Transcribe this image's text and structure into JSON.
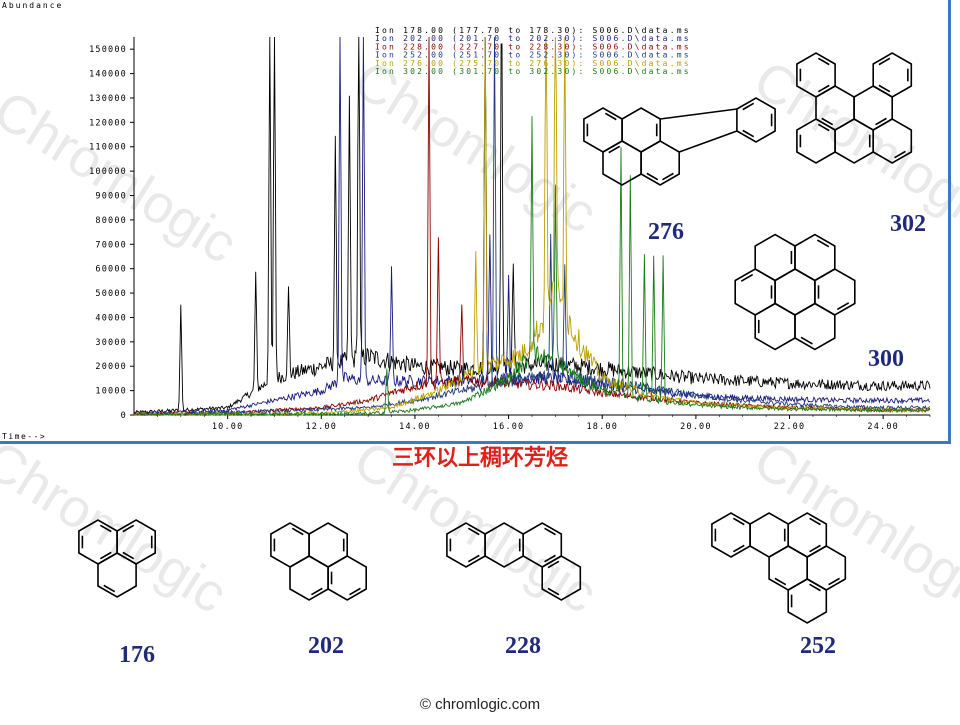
{
  "chart_data": {
    "type": "line",
    "ylabel": "Abundance",
    "xlabel": "Time-->",
    "xlim": [
      8.0,
      25.0
    ],
    "ylim": [
      0,
      155000
    ],
    "x_ticks": [
      "10.00",
      "12.00",
      "14.00",
      "16.00",
      "18.00",
      "20.00",
      "22.00",
      "24.00"
    ],
    "y_ticks": [
      "150000",
      "140000",
      "130000",
      "120000",
      "110000",
      "100000",
      "90000",
      "80000",
      "70000",
      "60000",
      "50000",
      "40000",
      "30000",
      "20000",
      "10000",
      "0"
    ],
    "legend": [
      "Ion 178.00 (177.70 to 178.30): S006.D\\data.ms",
      "Ion 202.00 (201.70 to 202.30): S006.D\\data.ms",
      "Ion 228.00 (227.70 to 228.30): S006.D\\data.ms",
      "Ion 252.00 (251.70 to 252.30): S006.D\\data.ms",
      "Ion 276.00 (275.70 to 276.30): S006.D\\data.ms",
      "Ion 302.00 (301.70 to 302.30): S006.D\\data.ms"
    ],
    "legend_placement": "top-center",
    "colors": [
      "#000000",
      "#1a1a80",
      "#8b0000",
      "#1f3a7a",
      "#b8a000",
      "#1a7a1a"
    ],
    "series": [
      {
        "name": "Ion 178.00",
        "color": "#000000",
        "baseline": [
          [
            8.0,
            1000
          ],
          [
            9.0,
            2000
          ],
          [
            10.0,
            3000
          ],
          [
            11.0,
            15000
          ],
          [
            12.0,
            20000
          ],
          [
            13.0,
            24000
          ],
          [
            14.0,
            20000
          ],
          [
            15.0,
            19000
          ],
          [
            16.0,
            20000
          ],
          [
            17.0,
            21000
          ],
          [
            18.0,
            19000
          ],
          [
            19.0,
            17000
          ],
          [
            20.0,
            15000
          ],
          [
            21.0,
            14000
          ],
          [
            22.0,
            13000
          ],
          [
            23.0,
            12500
          ],
          [
            24.0,
            12000
          ],
          [
            25.0,
            12000
          ]
        ],
        "peaks": [
          [
            9.0,
            43000
          ],
          [
            10.6,
            48000
          ],
          [
            10.9,
            155000
          ],
          [
            11.0,
            155000
          ],
          [
            11.3,
            35000
          ],
          [
            12.3,
            90000
          ],
          [
            12.6,
            110000
          ],
          [
            12.8,
            155000
          ],
          [
            15.5,
            155000
          ],
          [
            15.85,
            155000
          ],
          [
            16.1,
            40000
          ]
        ]
      },
      {
        "name": "Ion 202.00",
        "color": "#1a1a80",
        "baseline": [
          [
            8.0,
            500
          ],
          [
            9.0,
            1000
          ],
          [
            10.0,
            2000
          ],
          [
            11.0,
            6000
          ],
          [
            12.0,
            10000
          ],
          [
            12.5,
            15000
          ],
          [
            13.0,
            14000
          ],
          [
            14.0,
            14000
          ],
          [
            15.0,
            14000
          ],
          [
            16.0,
            15000
          ],
          [
            17.0,
            15000
          ],
          [
            18.0,
            12000
          ],
          [
            19.0,
            10000
          ],
          [
            20.0,
            8000
          ],
          [
            21.0,
            7000
          ],
          [
            22.0,
            6500
          ],
          [
            23.0,
            6000
          ],
          [
            24.0,
            6000
          ],
          [
            25.0,
            6000
          ]
        ],
        "peaks": [
          [
            12.4,
            155000
          ],
          [
            12.9,
            155000
          ],
          [
            13.5,
            45000
          ],
          [
            15.6,
            60000
          ],
          [
            16.0,
            45000
          ]
        ]
      },
      {
        "name": "Ion 228.00",
        "color": "#8b0000",
        "baseline": [
          [
            8.0,
            300
          ],
          [
            10.0,
            800
          ],
          [
            12.0,
            3000
          ],
          [
            13.0,
            6000
          ],
          [
            14.0,
            12000
          ],
          [
            15.0,
            14000
          ],
          [
            16.0,
            13000
          ],
          [
            17.0,
            12000
          ],
          [
            18.0,
            9000
          ],
          [
            19.0,
            7000
          ],
          [
            20.0,
            5000
          ],
          [
            21.0,
            4000
          ],
          [
            22.0,
            3000
          ],
          [
            23.0,
            2500
          ],
          [
            24.0,
            2000
          ],
          [
            25.0,
            2000
          ]
        ],
        "peaks": [
          [
            14.3,
            155000
          ],
          [
            14.5,
            60000
          ],
          [
            15.0,
            30000
          ]
        ]
      },
      {
        "name": "Ion 252.00",
        "color": "#1f3a7a",
        "baseline": [
          [
            8.0,
            300
          ],
          [
            11.0,
            1500
          ],
          [
            13.0,
            3000
          ],
          [
            14.0,
            6000
          ],
          [
            15.0,
            10000
          ],
          [
            16.0,
            14000
          ],
          [
            17.0,
            16000
          ],
          [
            18.0,
            14000
          ],
          [
            19.0,
            11000
          ],
          [
            20.0,
            8000
          ],
          [
            21.0,
            6000
          ],
          [
            22.0,
            4500
          ],
          [
            23.0,
            3500
          ],
          [
            24.0,
            3000
          ],
          [
            25.0,
            3000
          ]
        ],
        "peaks": [
          [
            15.5,
            155000
          ],
          [
            15.7,
            155000
          ],
          [
            16.9,
            60000
          ],
          [
            17.2,
            45000
          ]
        ]
      },
      {
        "name": "Ion 276.00",
        "color": "#b8a000",
        "baseline": [
          [
            8.0,
            200
          ],
          [
            12.0,
            500
          ],
          [
            13.5,
            3000
          ],
          [
            14.5,
            10000
          ],
          [
            15.5,
            20000
          ],
          [
            16.3,
            25000
          ],
          [
            16.8,
            40000
          ],
          [
            17.0,
            50000
          ],
          [
            17.5,
            30000
          ],
          [
            18.0,
            15000
          ],
          [
            19.0,
            8000
          ],
          [
            20.0,
            5000
          ],
          [
            21.0,
            3500
          ],
          [
            22.0,
            3000
          ],
          [
            23.0,
            2500
          ],
          [
            24.0,
            2000
          ],
          [
            25.0,
            2000
          ]
        ],
        "peaks": [
          [
            15.3,
            50000
          ],
          [
            15.5,
            155000
          ],
          [
            16.8,
            155000
          ],
          [
            17.0,
            155000
          ],
          [
            17.2,
            130000
          ]
        ]
      },
      {
        "name": "Ion 302.00",
        "color": "#1a7a1a",
        "baseline": [
          [
            8.0,
            200
          ],
          [
            13.0,
            500
          ],
          [
            14.0,
            2000
          ],
          [
            15.0,
            5000
          ],
          [
            16.0,
            15000
          ],
          [
            16.5,
            25000
          ],
          [
            17.0,
            22000
          ],
          [
            17.5,
            15000
          ],
          [
            18.0,
            10000
          ],
          [
            19.0,
            6000
          ],
          [
            20.0,
            4000
          ],
          [
            21.0,
            3000
          ],
          [
            22.0,
            2500
          ],
          [
            23.0,
            2200
          ],
          [
            24.0,
            2000
          ],
          [
            25.0,
            2000
          ]
        ],
        "peaks": [
          [
            13.4,
            18000
          ],
          [
            16.5,
            100000
          ],
          [
            17.0,
            70000
          ],
          [
            18.4,
            100000
          ],
          [
            18.6,
            90000
          ],
          [
            18.9,
            60000
          ],
          [
            19.1,
            60000
          ],
          [
            19.3,
            60000
          ]
        ]
      }
    ]
  },
  "structure_labels": {
    "s276": "276",
    "s302": "302",
    "s300": "300",
    "s176": "176",
    "s202": "202",
    "s228": "228",
    "s252": "252"
  },
  "watermark_text": "Chromlogic",
  "caption": "三环以上稠环芳烃",
  "footer": "© chromlogic.com"
}
